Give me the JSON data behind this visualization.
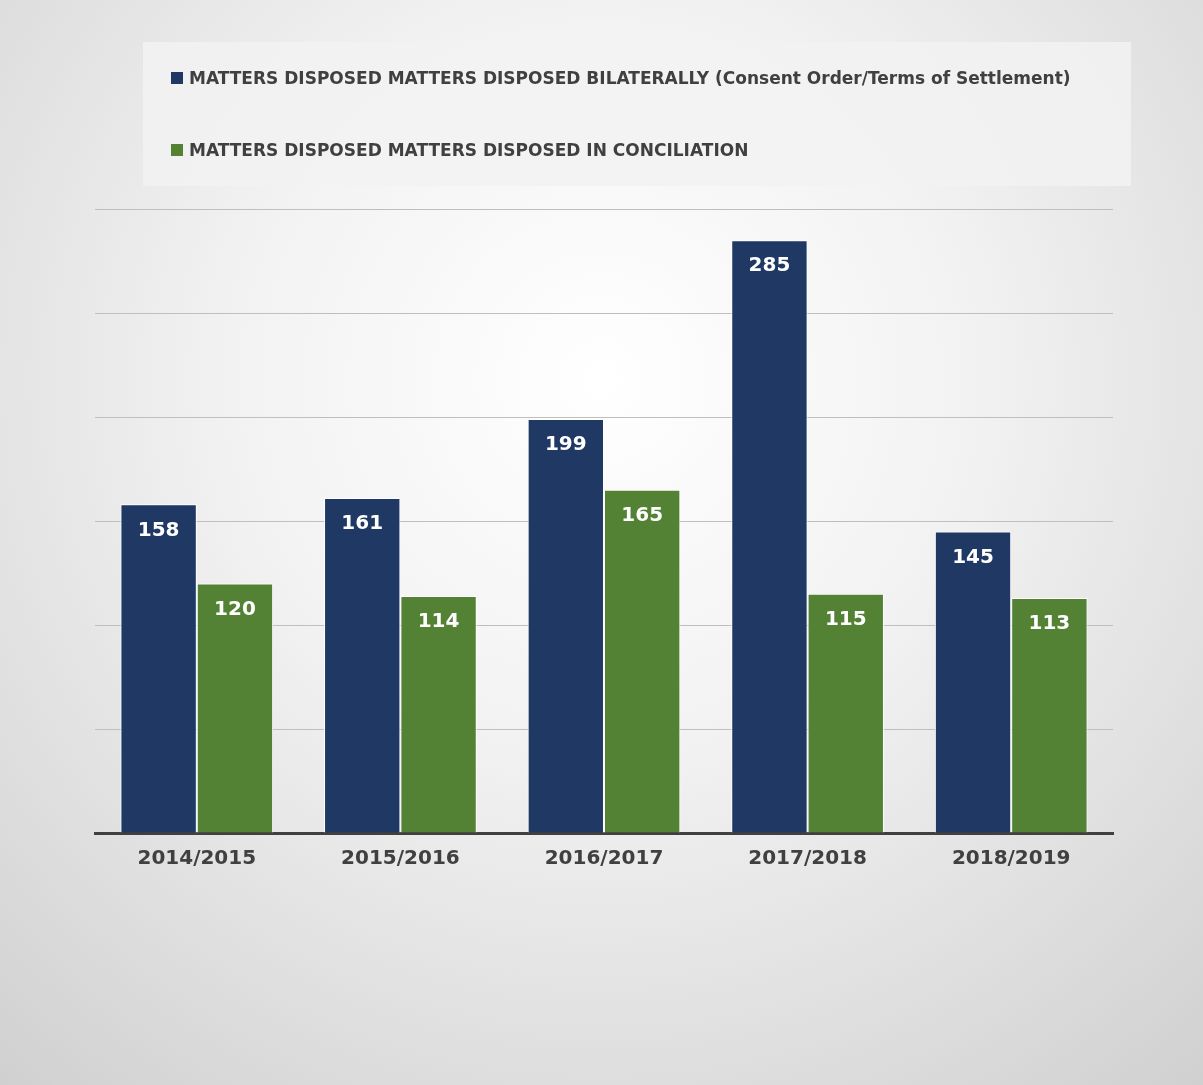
{
  "chart_data": {
    "type": "bar",
    "categories": [
      "2014/2015",
      "2015/2016",
      "2016/2017",
      "2017/2018",
      "2018/2019"
    ],
    "series": [
      {
        "name": "MATTERS DISPOSED MATTERS DISPOSED BILATERALLY (Consent Order/Terms of Settlement)",
        "color": "#1f3864",
        "values": [
          158,
          161,
          199,
          285,
          145
        ]
      },
      {
        "name": "MATTERS DISPOSED MATTERS DISPOSED IN CONCILIATION",
        "color": "#548235",
        "values": [
          120,
          114,
          165,
          115,
          113
        ]
      }
    ],
    "ylim": [
      0,
      300
    ],
    "yticks": [
      {
        "value": 0,
        "label": null
      },
      {
        "value": 50,
        "label": null
      },
      {
        "value": 100,
        "label": null
      },
      {
        "value": 150,
        "label": null
      },
      {
        "value": 200,
        "label": null
      },
      {
        "value": 250,
        "label": null
      },
      {
        "value": 300,
        "label": null
      }
    ],
    "grid": "y",
    "legend": "top",
    "tick_labels": "x",
    "data_labels": true
  }
}
